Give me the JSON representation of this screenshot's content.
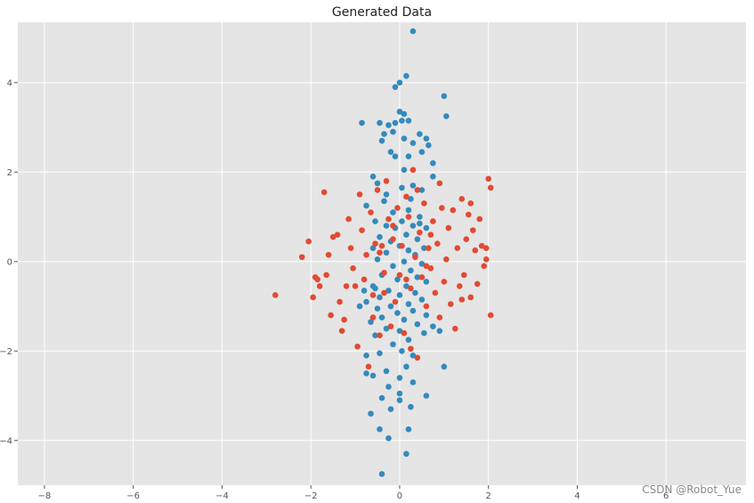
{
  "chart_data": {
    "type": "scatter",
    "title": "Generated Data",
    "xlabel": "",
    "ylabel": "",
    "xlim": [
      -8.6,
      7.8
    ],
    "ylim": [
      -5.0,
      5.35
    ],
    "xticks": [
      -8,
      -6,
      -4,
      -2,
      0,
      2,
      4,
      6
    ],
    "yticks": [
      -4,
      -2,
      0,
      2,
      4
    ],
    "grid": true,
    "legend": "none",
    "series": [
      {
        "color": "#348ABD",
        "points": [
          [
            0.3,
            5.15
          ],
          [
            0.15,
            4.15
          ],
          [
            0.0,
            4.0
          ],
          [
            -0.1,
            3.9
          ],
          [
            1.0,
            3.7
          ],
          [
            1.05,
            3.25
          ],
          [
            0.0,
            3.35
          ],
          [
            0.1,
            3.3
          ],
          [
            -0.85,
            3.1
          ],
          [
            -0.45,
            3.1
          ],
          [
            -0.25,
            3.05
          ],
          [
            -0.1,
            3.1
          ],
          [
            0.05,
            3.15
          ],
          [
            0.2,
            3.15
          ],
          [
            0.45,
            2.85
          ],
          [
            0.6,
            2.75
          ],
          [
            -0.15,
            2.9
          ],
          [
            -0.35,
            2.85
          ],
          [
            0.1,
            2.75
          ],
          [
            0.3,
            2.65
          ],
          [
            -0.4,
            2.7
          ],
          [
            0.65,
            2.6
          ],
          [
            0.5,
            2.45
          ],
          [
            -0.2,
            2.45
          ],
          [
            0.2,
            2.35
          ],
          [
            -0.1,
            2.35
          ],
          [
            0.75,
            2.2
          ],
          [
            0.1,
            2.05
          ],
          [
            -0.6,
            1.9
          ],
          [
            0.3,
            1.7
          ],
          [
            0.5,
            1.6
          ],
          [
            0.75,
            1.9
          ],
          [
            -0.5,
            1.75
          ],
          [
            -0.3,
            1.5
          ],
          [
            0.25,
            1.4
          ],
          [
            -0.15,
            1.1
          ],
          [
            0.2,
            1.15
          ],
          [
            0.45,
            1.0
          ],
          [
            -0.75,
            1.25
          ],
          [
            0.6,
            0.75
          ],
          [
            -0.55,
            0.9
          ],
          [
            0.05,
            0.9
          ],
          [
            -0.3,
            0.8
          ],
          [
            0.3,
            0.8
          ],
          [
            -0.1,
            0.75
          ],
          [
            0.15,
            0.6
          ],
          [
            -0.45,
            0.55
          ],
          [
            0.4,
            0.5
          ],
          [
            -0.2,
            0.45
          ],
          [
            0.55,
            0.3
          ],
          [
            -0.6,
            0.3
          ],
          [
            0.0,
            0.35
          ],
          [
            0.2,
            0.25
          ],
          [
            -0.3,
            0.2
          ],
          [
            0.35,
            0.15
          ],
          [
            -0.5,
            0.05
          ],
          [
            0.1,
            0.0
          ],
          [
            0.5,
            -0.05
          ],
          [
            -0.15,
            -0.1
          ],
          [
            0.25,
            -0.2
          ],
          [
            -0.4,
            -0.3
          ],
          [
            0.4,
            -0.35
          ],
          [
            -0.05,
            -0.4
          ],
          [
            0.6,
            -0.45
          ],
          [
            -0.6,
            -0.55
          ],
          [
            0.15,
            -0.55
          ],
          [
            -0.25,
            -0.65
          ],
          [
            0.35,
            -0.7
          ],
          [
            0.0,
            -0.75
          ],
          [
            -0.45,
            -0.8
          ],
          [
            0.5,
            -0.85
          ],
          [
            -0.75,
            -0.9
          ],
          [
            0.2,
            -0.95
          ],
          [
            -0.2,
            -1.0
          ],
          [
            -0.5,
            -1.05
          ],
          [
            0.3,
            -1.1
          ],
          [
            -0.05,
            -1.15
          ],
          [
            0.6,
            -1.2
          ],
          [
            -0.4,
            -1.25
          ],
          [
            -0.9,
            -1.0
          ],
          [
            0.1,
            -1.3
          ],
          [
            -0.65,
            -1.35
          ],
          [
            0.4,
            -1.4
          ],
          [
            0.75,
            -1.45
          ],
          [
            -0.3,
            -1.5
          ],
          [
            0.0,
            -1.55
          ],
          [
            0.55,
            -1.6
          ],
          [
            -0.55,
            -1.65
          ],
          [
            0.2,
            -1.75
          ],
          [
            0.9,
            -1.55
          ],
          [
            -0.15,
            -1.85
          ],
          [
            -0.45,
            -2.05
          ],
          [
            0.05,
            -2.0
          ],
          [
            0.3,
            -2.1
          ],
          [
            -0.75,
            -2.1
          ],
          [
            0.15,
            -2.35
          ],
          [
            1.0,
            -2.35
          ],
          [
            -0.6,
            -2.55
          ],
          [
            -0.3,
            -2.45
          ],
          [
            -0.75,
            -2.5
          ],
          [
            0.0,
            -2.6
          ],
          [
            0.3,
            -2.7
          ],
          [
            -0.25,
            -2.8
          ],
          [
            -0.4,
            -3.05
          ],
          [
            0.0,
            -2.95
          ],
          [
            0.6,
            -3.0
          ],
          [
            0.25,
            -3.25
          ],
          [
            -0.2,
            -3.3
          ],
          [
            -0.65,
            -3.4
          ],
          [
            0.0,
            -3.1
          ],
          [
            -0.45,
            -3.75
          ],
          [
            0.2,
            -3.75
          ],
          [
            -0.25,
            -3.95
          ],
          [
            0.15,
            -4.3
          ],
          [
            -0.4,
            -4.75
          ],
          [
            -0.55,
            -0.6
          ],
          [
            0.45,
            0.85
          ],
          [
            -0.35,
            1.35
          ],
          [
            0.05,
            1.65
          ],
          [
            -0.8,
            -0.65
          ]
        ]
      },
      {
        "color": "#E24A33",
        "points": [
          [
            -2.8,
            -0.75
          ],
          [
            -2.2,
            0.1
          ],
          [
            -2.05,
            0.45
          ],
          [
            -1.95,
            -0.8
          ],
          [
            -1.9,
            -0.35
          ],
          [
            -1.85,
            -0.4
          ],
          [
            -1.7,
            1.55
          ],
          [
            -1.65,
            -0.3
          ],
          [
            -1.55,
            -1.2
          ],
          [
            -1.5,
            0.55
          ],
          [
            -1.4,
            0.6
          ],
          [
            -1.3,
            -1.55
          ],
          [
            -1.25,
            -1.3
          ],
          [
            -1.2,
            -0.55
          ],
          [
            -1.15,
            0.95
          ],
          [
            -1.1,
            0.3
          ],
          [
            -1.05,
            -0.15
          ],
          [
            -1.0,
            -0.55
          ],
          [
            -0.95,
            -1.9
          ],
          [
            -0.9,
            1.5
          ],
          [
            -0.85,
            0.7
          ],
          [
            -0.8,
            -0.4
          ],
          [
            -0.75,
            0.15
          ],
          [
            -0.7,
            -2.35
          ],
          [
            -0.65,
            1.1
          ],
          [
            -0.6,
            -0.75
          ],
          [
            -0.55,
            0.4
          ],
          [
            -0.5,
            1.6
          ],
          [
            -0.45,
            -1.65
          ],
          [
            -0.4,
            0.35
          ],
          [
            -0.35,
            -0.25
          ],
          [
            -0.3,
            1.8
          ],
          [
            -0.25,
            0.95
          ],
          [
            -0.2,
            -1.45
          ],
          [
            -0.15,
            0.5
          ],
          [
            -0.1,
            -0.9
          ],
          [
            -0.05,
            1.2
          ],
          [
            0.0,
            -0.3
          ],
          [
            0.05,
            0.35
          ],
          [
            0.1,
            -1.6
          ],
          [
            0.15,
            1.45
          ],
          [
            0.2,
            1.0
          ],
          [
            0.25,
            -0.6
          ],
          [
            0.3,
            2.05
          ],
          [
            0.35,
            0.1
          ],
          [
            0.4,
            -2.15
          ],
          [
            0.45,
            0.65
          ],
          [
            0.5,
            -0.35
          ],
          [
            0.55,
            1.3
          ],
          [
            0.6,
            -1.0
          ],
          [
            0.65,
            0.3
          ],
          [
            0.7,
            -0.15
          ],
          [
            0.75,
            0.9
          ],
          [
            0.8,
            -0.7
          ],
          [
            0.85,
            0.4
          ],
          [
            0.9,
            -1.25
          ],
          [
            0.95,
            1.2
          ],
          [
            1.0,
            -0.45
          ],
          [
            1.05,
            0.05
          ],
          [
            1.1,
            0.75
          ],
          [
            1.15,
            -0.95
          ],
          [
            1.2,
            1.15
          ],
          [
            1.25,
            -1.5
          ],
          [
            1.3,
            0.3
          ],
          [
            1.35,
            -0.55
          ],
          [
            1.4,
            1.4
          ],
          [
            1.45,
            -0.3
          ],
          [
            1.5,
            0.5
          ],
          [
            1.55,
            1.05
          ],
          [
            1.6,
            -0.8
          ],
          [
            1.65,
            0.7
          ],
          [
            1.7,
            0.25
          ],
          [
            1.75,
            -0.5
          ],
          [
            1.8,
            0.95
          ],
          [
            1.85,
            0.35
          ],
          [
            1.9,
            -0.1
          ],
          [
            1.95,
            0.05
          ],
          [
            2.0,
            1.85
          ],
          [
            2.05,
            1.65
          ],
          [
            2.05,
            -1.2
          ],
          [
            1.95,
            0.3
          ],
          [
            1.6,
            1.3
          ],
          [
            1.4,
            -0.85
          ],
          [
            -0.6,
            -1.25
          ],
          [
            0.25,
            -1.95
          ],
          [
            -0.15,
            0.8
          ],
          [
            0.4,
            1.6
          ],
          [
            -0.35,
            -0.7
          ],
          [
            0.6,
            -0.1
          ],
          [
            -1.6,
            0.15
          ],
          [
            -1.35,
            -0.9
          ],
          [
            -1.8,
            -0.55
          ],
          [
            0.9,
            1.75
          ],
          [
            -0.45,
            0.2
          ],
          [
            0.15,
            -0.4
          ],
          [
            0.7,
            0.6
          ]
        ]
      }
    ]
  },
  "watermark": "CSDN @Robot_Yue"
}
